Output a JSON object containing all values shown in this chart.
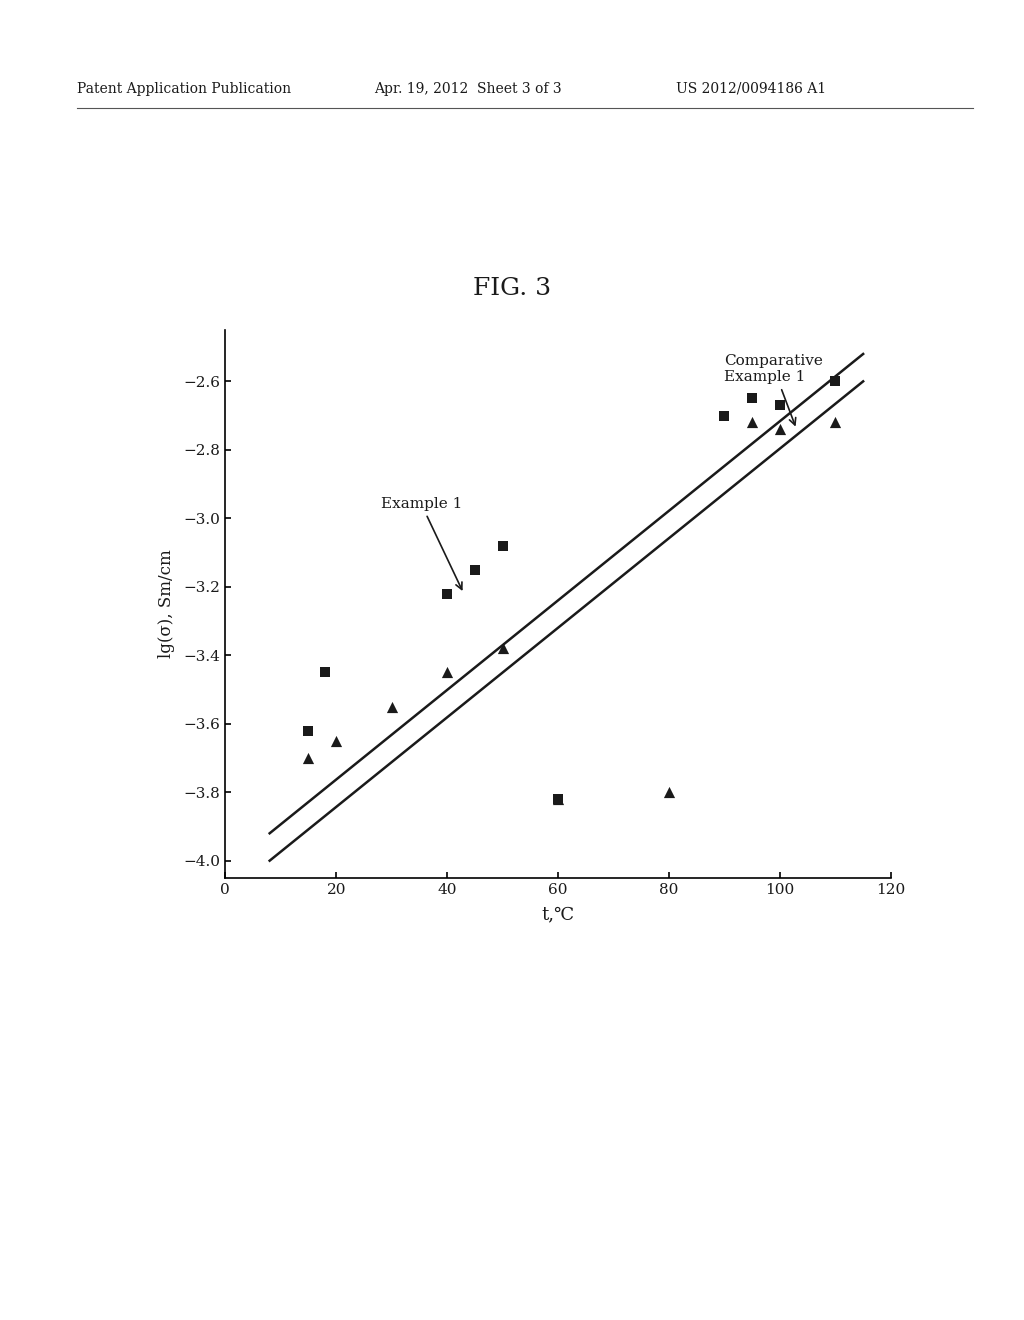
{
  "title": "FIG. 3",
  "xlabel": "t,℃",
  "ylabel": "lg(σ), Sm/cm",
  "xlim": [
    0,
    120
  ],
  "ylim": [
    -4.05,
    -2.45
  ],
  "xticks": [
    0,
    20,
    40,
    60,
    80,
    100,
    120
  ],
  "yticks": [
    -4.0,
    -3.8,
    -3.6,
    -3.4,
    -3.2,
    -3.0,
    -2.8,
    -2.6
  ],
  "example1_x": [
    15,
    18,
    40,
    45,
    50,
    60,
    90,
    95,
    100,
    110
  ],
  "example1_y": [
    -3.62,
    -3.45,
    -3.22,
    -3.15,
    -3.08,
    -3.82,
    -2.7,
    -2.65,
    -2.67,
    -2.6
  ],
  "comp_example1_x": [
    15,
    20,
    30,
    40,
    50,
    60,
    80,
    95,
    100,
    110
  ],
  "comp_example1_y": [
    -3.7,
    -3.65,
    -3.55,
    -3.45,
    -3.38,
    -3.82,
    -3.8,
    -2.72,
    -2.74,
    -2.72
  ],
  "line1_x": [
    8,
    115
  ],
  "line1_y": [
    -3.92,
    -2.52
  ],
  "line2_x": [
    8,
    115
  ],
  "line2_y": [
    -4.0,
    -2.6
  ],
  "header_left": "Patent Application Publication",
  "header_center": "Apr. 19, 2012  Sheet 3 of 3",
  "header_right": "US 2012/0094186 A1",
  "background_color": "#ffffff",
  "marker_color": "#1a1a1a",
  "line_color": "#1a1a1a"
}
